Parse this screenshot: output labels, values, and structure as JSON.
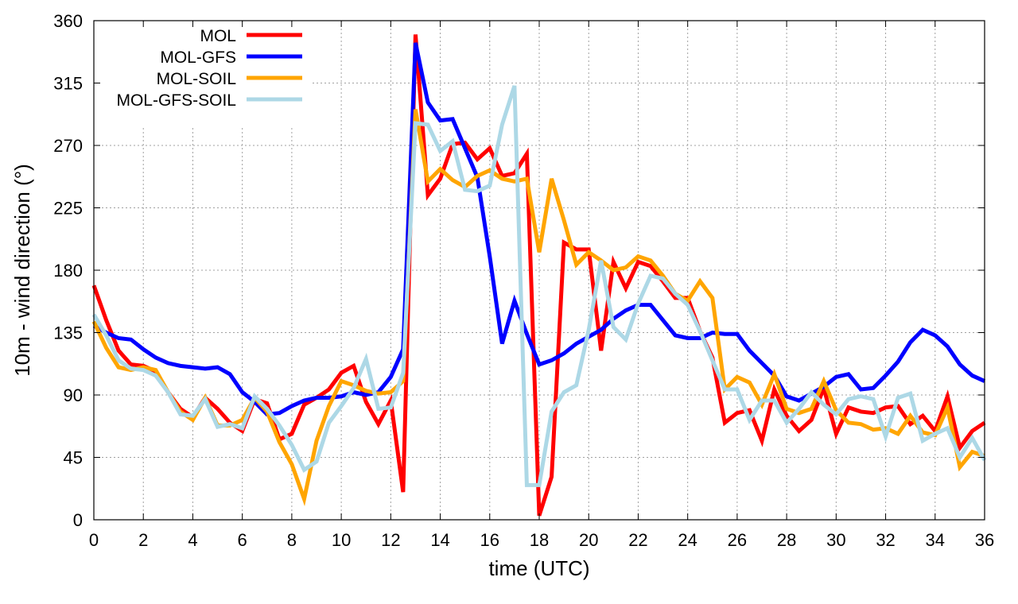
{
  "chart_data": {
    "type": "line",
    "xlabel": "time (UTC)",
    "ylabel": "10m - wind direction (°)",
    "xlim": [
      0,
      36
    ],
    "ylim": [
      0,
      360
    ],
    "xticks": [
      0,
      2,
      4,
      6,
      8,
      10,
      12,
      14,
      16,
      18,
      20,
      22,
      24,
      26,
      28,
      30,
      32,
      34,
      36
    ],
    "yticks": [
      0,
      45,
      90,
      135,
      180,
      225,
      270,
      315,
      360
    ],
    "grid": true,
    "legend_position": "top-left",
    "series": [
      {
        "name": "MOL",
        "color": "#ff0000",
        "points": [
          [
            0,
            169
          ],
          [
            0.5,
            144
          ],
          [
            1,
            122
          ],
          [
            1.5,
            112
          ],
          [
            2,
            111
          ],
          [
            2.5,
            107
          ],
          [
            3,
            92
          ],
          [
            3.5,
            80
          ],
          [
            4,
            74
          ],
          [
            4.5,
            88
          ],
          [
            5,
            80
          ],
          [
            5.5,
            70
          ],
          [
            6,
            64
          ],
          [
            6.5,
            87
          ],
          [
            7,
            84
          ],
          [
            7.5,
            58
          ],
          [
            8,
            62
          ],
          [
            8.5,
            83
          ],
          [
            9,
            88
          ],
          [
            9.5,
            94
          ],
          [
            10,
            106
          ],
          [
            10.5,
            111
          ],
          [
            11,
            85
          ],
          [
            11.5,
            69
          ],
          [
            12,
            86
          ],
          [
            12.5,
            20
          ],
          [
            13,
            350
          ],
          [
            13.5,
            234
          ],
          [
            14,
            246
          ],
          [
            14.5,
            271
          ],
          [
            15,
            272
          ],
          [
            15.5,
            260
          ],
          [
            16,
            268
          ],
          [
            16.5,
            248
          ],
          [
            17,
            250
          ],
          [
            17.5,
            264
          ],
          [
            18,
            3
          ],
          [
            18.5,
            31
          ],
          [
            19,
            200
          ],
          [
            19.5,
            195
          ],
          [
            20,
            195
          ],
          [
            20.5,
            122
          ],
          [
            21,
            186
          ],
          [
            21.5,
            167
          ],
          [
            22,
            186
          ],
          [
            22.5,
            183
          ],
          [
            23,
            172
          ],
          [
            23.5,
            160
          ],
          [
            24,
            160
          ],
          [
            24.5,
            136
          ],
          [
            25,
            117
          ],
          [
            25.5,
            70
          ],
          [
            26,
            77
          ],
          [
            26.5,
            79
          ],
          [
            27,
            57
          ],
          [
            27.5,
            94
          ],
          [
            28,
            75
          ],
          [
            28.5,
            64
          ],
          [
            29,
            72
          ],
          [
            29.5,
            95
          ],
          [
            30,
            62
          ],
          [
            30.5,
            81
          ],
          [
            31,
            78
          ],
          [
            31.5,
            77
          ],
          [
            32,
            81
          ],
          [
            32.5,
            82
          ],
          [
            33,
            69
          ],
          [
            33.5,
            75
          ],
          [
            34,
            64
          ],
          [
            34.5,
            89
          ],
          [
            35,
            52
          ],
          [
            35.5,
            64
          ],
          [
            36,
            70
          ]
        ]
      },
      {
        "name": "MOL-GFS",
        "color": "#0000ff",
        "points": [
          [
            0,
            140
          ],
          [
            0.5,
            135
          ],
          [
            1,
            131
          ],
          [
            1.5,
            130
          ],
          [
            2,
            123
          ],
          [
            2.5,
            117
          ],
          [
            3,
            113
          ],
          [
            3.5,
            111
          ],
          [
            4,
            110
          ],
          [
            4.5,
            109
          ],
          [
            5,
            110
          ],
          [
            5.5,
            105
          ],
          [
            6,
            92
          ],
          [
            6.5,
            85
          ],
          [
            7,
            76
          ],
          [
            7.5,
            77
          ],
          [
            8,
            82
          ],
          [
            8.5,
            86
          ],
          [
            9,
            88
          ],
          [
            9.5,
            88
          ],
          [
            10,
            89
          ],
          [
            10.5,
            92
          ],
          [
            11,
            90
          ],
          [
            11.5,
            92
          ],
          [
            12,
            103
          ],
          [
            12.5,
            123
          ],
          [
            13,
            344
          ],
          [
            13.5,
            301
          ],
          [
            14,
            288
          ],
          [
            14.5,
            289
          ],
          [
            15,
            268
          ],
          [
            15.5,
            247
          ],
          [
            16,
            190
          ],
          [
            16.5,
            127
          ],
          [
            17,
            158
          ],
          [
            17.5,
            134
          ],
          [
            18,
            112
          ],
          [
            18.5,
            115
          ],
          [
            19,
            120
          ],
          [
            19.5,
            127
          ],
          [
            20,
            132
          ],
          [
            20.5,
            137
          ],
          [
            21,
            145
          ],
          [
            21.5,
            151
          ],
          [
            22,
            155
          ],
          [
            22.5,
            155
          ],
          [
            23,
            144
          ],
          [
            23.5,
            133
          ],
          [
            24,
            131
          ],
          [
            24.5,
            131
          ],
          [
            25,
            135
          ],
          [
            25.5,
            134
          ],
          [
            26,
            134
          ],
          [
            26.5,
            122
          ],
          [
            27,
            113
          ],
          [
            27.5,
            104
          ],
          [
            28,
            89
          ],
          [
            28.5,
            86
          ],
          [
            29,
            91
          ],
          [
            29.5,
            96
          ],
          [
            30,
            103
          ],
          [
            30.5,
            105
          ],
          [
            31,
            94
          ],
          [
            31.5,
            95
          ],
          [
            32,
            104
          ],
          [
            32.5,
            114
          ],
          [
            33,
            128
          ],
          [
            33.5,
            137
          ],
          [
            34,
            133
          ],
          [
            34.5,
            125
          ],
          [
            35,
            112
          ],
          [
            35.5,
            104
          ],
          [
            36,
            100
          ]
        ]
      },
      {
        "name": "MOL-SOIL",
        "color": "#ffa500",
        "points": [
          [
            0,
            143
          ],
          [
            0.5,
            124
          ],
          [
            1,
            110
          ],
          [
            1.5,
            108
          ],
          [
            2,
            110
          ],
          [
            2.5,
            108
          ],
          [
            3,
            92
          ],
          [
            3.5,
            78
          ],
          [
            4,
            72
          ],
          [
            4.5,
            88
          ],
          [
            5,
            68
          ],
          [
            5.5,
            68
          ],
          [
            6,
            72
          ],
          [
            6.5,
            88
          ],
          [
            7,
            78
          ],
          [
            7.5,
            56
          ],
          [
            8,
            40
          ],
          [
            8.5,
            15
          ],
          [
            9,
            57
          ],
          [
            9.5,
            82
          ],
          [
            10,
            100
          ],
          [
            10.5,
            97
          ],
          [
            11,
            93
          ],
          [
            11.5,
            91
          ],
          [
            12,
            92
          ],
          [
            12.5,
            100
          ],
          [
            13,
            296
          ],
          [
            13.5,
            244
          ],
          [
            14,
            253
          ],
          [
            14.5,
            245
          ],
          [
            15,
            240
          ],
          [
            15.5,
            248
          ],
          [
            16,
            252
          ],
          [
            16.5,
            246
          ],
          [
            17,
            244
          ],
          [
            17.5,
            246
          ],
          [
            18,
            193
          ],
          [
            18.5,
            246
          ],
          [
            19,
            216
          ],
          [
            19.5,
            184
          ],
          [
            20,
            193
          ],
          [
            20.5,
            187
          ],
          [
            21,
            180
          ],
          [
            21.5,
            182
          ],
          [
            22,
            190
          ],
          [
            22.5,
            187
          ],
          [
            23,
            176
          ],
          [
            23.5,
            163
          ],
          [
            24,
            158
          ],
          [
            24.5,
            172
          ],
          [
            25,
            160
          ],
          [
            25.5,
            94
          ],
          [
            26,
            103
          ],
          [
            26.5,
            99
          ],
          [
            27,
            83
          ],
          [
            27.5,
            105
          ],
          [
            28,
            80
          ],
          [
            28.5,
            77
          ],
          [
            29,
            80
          ],
          [
            29.5,
            100
          ],
          [
            30,
            79
          ],
          [
            30.5,
            70
          ],
          [
            31,
            69
          ],
          [
            31.5,
            65
          ],
          [
            32,
            66
          ],
          [
            32.5,
            62
          ],
          [
            33,
            75
          ],
          [
            33.5,
            63
          ],
          [
            34,
            61
          ],
          [
            34.5,
            81
          ],
          [
            35,
            38
          ],
          [
            35.5,
            49
          ],
          [
            36,
            46
          ]
        ]
      },
      {
        "name": "MOL-GFS-SOIL",
        "color": "#add8e6",
        "points": [
          [
            0,
            148
          ],
          [
            0.5,
            133
          ],
          [
            1,
            115
          ],
          [
            1.5,
            109
          ],
          [
            2,
            108
          ],
          [
            2.5,
            104
          ],
          [
            3,
            92
          ],
          [
            3.5,
            76
          ],
          [
            4,
            75
          ],
          [
            4.5,
            87
          ],
          [
            5,
            67
          ],
          [
            5.5,
            69
          ],
          [
            6,
            66
          ],
          [
            6.5,
            89
          ],
          [
            7,
            80
          ],
          [
            7.5,
            68
          ],
          [
            8,
            54
          ],
          [
            8.5,
            36
          ],
          [
            9,
            42
          ],
          [
            9.5,
            70
          ],
          [
            10,
            82
          ],
          [
            10.5,
            95
          ],
          [
            11,
            116
          ],
          [
            11.5,
            80
          ],
          [
            12,
            81
          ],
          [
            12.5,
            106
          ],
          [
            13,
            286
          ],
          [
            13.5,
            285
          ],
          [
            14,
            266
          ],
          [
            14.5,
            273
          ],
          [
            15,
            238
          ],
          [
            15.5,
            237
          ],
          [
            16,
            241
          ],
          [
            16.5,
            285
          ],
          [
            17,
            313
          ],
          [
            17.5,
            25
          ],
          [
            18,
            25
          ],
          [
            18.5,
            78
          ],
          [
            19,
            92
          ],
          [
            19.5,
            97
          ],
          [
            20,
            137
          ],
          [
            20.5,
            187
          ],
          [
            21,
            139
          ],
          [
            21.5,
            130
          ],
          [
            22,
            156
          ],
          [
            22.5,
            176
          ],
          [
            23,
            174
          ],
          [
            23.5,
            163
          ],
          [
            24,
            155
          ],
          [
            24.5,
            136
          ],
          [
            25,
            115
          ],
          [
            25.5,
            94
          ],
          [
            26,
            94
          ],
          [
            26.5,
            72
          ],
          [
            27,
            86
          ],
          [
            27.5,
            86
          ],
          [
            28,
            70
          ],
          [
            28.5,
            80
          ],
          [
            29,
            92
          ],
          [
            29.5,
            83
          ],
          [
            30,
            76
          ],
          [
            30.5,
            87
          ],
          [
            31,
            89
          ],
          [
            31.5,
            87
          ],
          [
            32,
            60
          ],
          [
            32.5,
            88
          ],
          [
            33,
            91
          ],
          [
            33.5,
            57
          ],
          [
            34,
            62
          ],
          [
            34.5,
            66
          ],
          [
            35,
            45
          ],
          [
            35.5,
            59
          ],
          [
            36,
            43
          ]
        ]
      }
    ]
  }
}
